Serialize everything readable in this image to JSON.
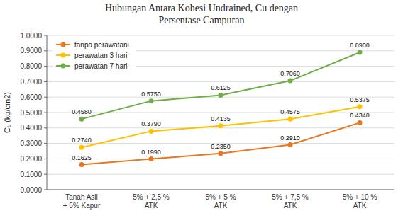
{
  "chart_data": {
    "type": "line",
    "title": "Hubungan Antara Kohesi Undrained, Cu dengan\nPersentase Campuran",
    "y_label": "Cᵤ (kg/cm2)",
    "categories": [
      "Tanah Asli\n+ 5% Kapur",
      "5% + 2,5 %\nATK",
      "5% + 5 %\nATK",
      "5% + 7,5 %\nATK",
      "5% + 10 %\nATK"
    ],
    "series": [
      {
        "name": "tanpa perawatani",
        "color": "#E87722",
        "values": [
          0.1625,
          0.199,
          0.235,
          0.291,
          0.434
        ],
        "value_labels": [
          "0.1625",
          "0.1990",
          "0.2350",
          "0.2910",
          "0.4340"
        ]
      },
      {
        "name": "perawatan 3 hari",
        "color": "#FFC000",
        "values": [
          0.274,
          0.379,
          0.4135,
          0.4575,
          0.5375
        ],
        "value_labels": [
          "0.2740",
          "0.3790",
          "0.4135",
          "0.4575",
          "0.5375"
        ]
      },
      {
        "name": "perawatan 7 hari",
        "color": "#70AD47",
        "values": [
          0.458,
          0.575,
          0.6125,
          0.706,
          0.89
        ],
        "value_labels": [
          "0.4580",
          "0.5750",
          "0.6125",
          "0.7060",
          "0.8900"
        ]
      }
    ],
    "ylim": [
      0.0,
      1.0
    ],
    "yticks": [
      {
        "value": 0.0,
        "label": "0.0000"
      },
      {
        "value": 0.1,
        "label": "0.1000"
      },
      {
        "value": 0.2,
        "label": "0.2000"
      },
      {
        "value": 0.3,
        "label": "0.3000"
      },
      {
        "value": 0.4,
        "label": "0.4000"
      },
      {
        "value": 0.5,
        "label": "0.5000"
      },
      {
        "value": 0.6,
        "label": "0.6000"
      },
      {
        "value": 0.7,
        "label": "0.7000"
      },
      {
        "value": 0.8,
        "label": "0.8000"
      },
      {
        "value": 0.9,
        "label": "0.9000"
      },
      {
        "value": 1.0,
        "label": "1.0000"
      }
    ],
    "grid": true,
    "legend": "upper left",
    "data_labels": true,
    "marker": "circle"
  }
}
